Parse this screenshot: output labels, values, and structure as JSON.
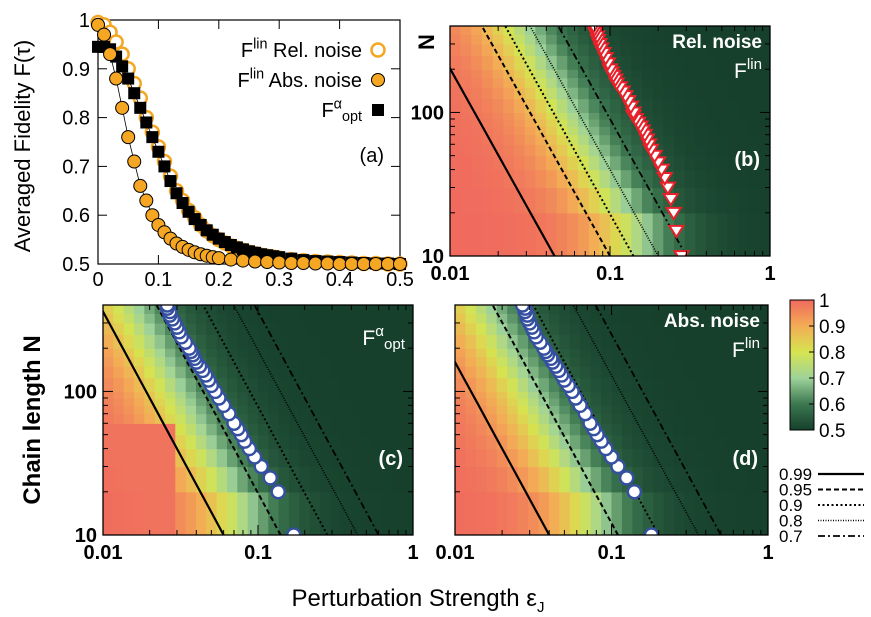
{
  "figure": {
    "ylabel_left": "Averaged Fidelity F(τ)",
    "ylabel_bottom_left": "Chain length N",
    "ylabel_b": "N",
    "xlabel": "Perturbation Strength ε",
    "xlabel_sub": "J"
  },
  "colors": {
    "orange": "#f5a623",
    "black": "#000000",
    "marker_blue": "#3550a0",
    "marker_red": "#e8202a",
    "heat_low": "#16402c",
    "heat_mid": "#d6e450",
    "heat_high": "#f06a5e"
  },
  "chart_data": [
    {
      "panel": "a",
      "type": "scatter",
      "label": "(a)",
      "xlim": [
        0,
        0.5
      ],
      "ylim": [
        0.5,
        1.0
      ],
      "xticks": [
        "0",
        "0.1",
        "0.2",
        "0.3",
        "0.4",
        "0.5"
      ],
      "yticks": [
        "0.5",
        "0.6",
        "0.7",
        "0.8",
        "0.9",
        "1"
      ],
      "legend_lines": [
        {
          "main": "F",
          "sup": "lin",
          "text": " Rel. noise"
        },
        {
          "main": "F",
          "sup": "lin",
          "text": " Abs. noise"
        },
        {
          "main": "F",
          "sup": "α",
          "sub": "opt",
          "text": ""
        }
      ],
      "series": [
        {
          "marker": "open-circle",
          "x": [
            0.0,
            0.01,
            0.02,
            0.03,
            0.04,
            0.05,
            0.06,
            0.07,
            0.08,
            0.09,
            0.1,
            0.11,
            0.12,
            0.13,
            0.14,
            0.15,
            0.16,
            0.17,
            0.18,
            0.19,
            0.2,
            0.21,
            0.22,
            0.23,
            0.24,
            0.25,
            0.26,
            0.27,
            0.28,
            0.29,
            0.3,
            0.32,
            0.34,
            0.36,
            0.38,
            0.4,
            0.42,
            0.44,
            0.46,
            0.48,
            0.5
          ],
          "y": [
            0.995,
            0.99,
            0.975,
            0.955,
            0.93,
            0.9,
            0.87,
            0.84,
            0.8,
            0.77,
            0.74,
            0.71,
            0.68,
            0.65,
            0.63,
            0.61,
            0.595,
            0.58,
            0.568,
            0.558,
            0.55,
            0.543,
            0.537,
            0.532,
            0.528,
            0.524,
            0.521,
            0.518,
            0.516,
            0.514,
            0.512,
            0.509,
            0.507,
            0.505,
            0.504,
            0.503,
            0.502,
            0.501,
            0.501,
            0.5,
            0.5
          ]
        },
        {
          "marker": "filled-circle",
          "x": [
            0.0,
            0.01,
            0.02,
            0.03,
            0.04,
            0.05,
            0.06,
            0.07,
            0.08,
            0.09,
            0.1,
            0.11,
            0.12,
            0.13,
            0.14,
            0.15,
            0.16,
            0.17,
            0.18,
            0.19,
            0.2,
            0.22,
            0.24,
            0.26,
            0.28,
            0.3,
            0.32,
            0.34,
            0.36,
            0.38,
            0.4,
            0.42,
            0.44,
            0.46,
            0.48,
            0.5
          ],
          "y": [
            0.99,
            0.97,
            0.93,
            0.88,
            0.82,
            0.76,
            0.71,
            0.66,
            0.63,
            0.6,
            0.58,
            0.565,
            0.552,
            0.542,
            0.535,
            0.529,
            0.524,
            0.52,
            0.517,
            0.514,
            0.512,
            0.509,
            0.507,
            0.505,
            0.504,
            0.503,
            0.502,
            0.502,
            0.501,
            0.501,
            0.5,
            0.5,
            0.5,
            0.5,
            0.5,
            0.5
          ]
        },
        {
          "marker": "filled-square",
          "x": [
            0.0,
            0.01,
            0.02,
            0.03,
            0.04,
            0.05,
            0.06,
            0.07,
            0.08,
            0.09,
            0.1,
            0.11,
            0.12,
            0.13,
            0.14,
            0.15,
            0.16,
            0.17,
            0.18,
            0.19,
            0.2,
            0.21,
            0.22,
            0.23,
            0.24,
            0.25,
            0.26,
            0.27,
            0.28,
            0.29,
            0.3,
            0.32,
            0.34,
            0.36,
            0.38,
            0.4,
            0.42,
            0.44,
            0.46,
            0.48,
            0.5
          ],
          "y": [
            0.945,
            0.945,
            0.94,
            0.925,
            0.905,
            0.88,
            0.85,
            0.82,
            0.79,
            0.76,
            0.73,
            0.7,
            0.67,
            0.645,
            0.625,
            0.607,
            0.592,
            0.58,
            0.569,
            0.56,
            0.552,
            0.545,
            0.539,
            0.534,
            0.53,
            0.526,
            0.523,
            0.52,
            0.518,
            0.516,
            0.514,
            0.511,
            0.508,
            0.506,
            0.505,
            0.504,
            0.503,
            0.502,
            0.501,
            0.501,
            0.5
          ]
        }
      ]
    },
    {
      "panel": "b",
      "type": "heatmap",
      "label": "(b)",
      "title": "Rel. noise",
      "title_math": {
        "main": "F",
        "sup": "lin"
      },
      "xscale": "log",
      "yscale": "log",
      "xlim": [
        0.01,
        1
      ],
      "ylim": [
        10,
        400
      ],
      "xticks": [
        "0.01",
        "0.1",
        "1"
      ],
      "yticks": [
        "10",
        "100"
      ],
      "offset": 0.52,
      "contours": [
        {
          "level": "0.99",
          "style": "solid",
          "x_at_N10": 0.045
        },
        {
          "level": "0.95",
          "style": "dashed",
          "x_at_N10": 0.1
        },
        {
          "level": "0.9",
          "style": "dotted",
          "x_at_N10": 0.14
        },
        {
          "level": "0.8",
          "style": "fine-dotted",
          "x_at_N10": 0.2
        },
        {
          "level": "0.7",
          "style": "dash-dot",
          "x_at_N10": 0.3
        }
      ],
      "markers": {
        "shape": "triangle-down",
        "N": [
          10,
          15,
          20,
          25,
          30,
          35,
          40,
          45,
          50,
          55,
          60,
          65,
          70,
          75,
          80,
          85,
          90,
          95,
          100,
          110,
          120,
          130,
          140,
          150,
          160,
          170,
          180,
          190,
          200,
          220,
          240,
          260,
          280,
          300,
          320,
          340,
          360,
          380,
          400
        ],
        "x": [
          0.28,
          0.26,
          0.25,
          0.24,
          0.23,
          0.22,
          0.21,
          0.2,
          0.19,
          0.18,
          0.175,
          0.17,
          0.165,
          0.16,
          0.155,
          0.15,
          0.145,
          0.14,
          0.14,
          0.135,
          0.13,
          0.125,
          0.12,
          0.115,
          0.11,
          0.108,
          0.105,
          0.102,
          0.1,
          0.097,
          0.094,
          0.091,
          0.088,
          0.086,
          0.084,
          0.083,
          0.081,
          0.08,
          0.079
        ]
      }
    },
    {
      "panel": "c",
      "type": "heatmap",
      "label": "(c)",
      "title_math": {
        "main": "F",
        "sup": "α",
        "sub": "opt"
      },
      "xscale": "log",
      "yscale": "log",
      "xlim": [
        0.01,
        1
      ],
      "ylim": [
        10,
        400
      ],
      "xticks": [
        "0.01",
        "0.1",
        "1"
      ],
      "yticks": [
        "10",
        "100"
      ],
      "offset": 0.28,
      "contours": [
        {
          "level": "0.99",
          "style": "solid",
          "x_at_N10": 0.06
        },
        {
          "level": "0.95",
          "style": "dashed",
          "x_at_N10": 0.14
        },
        {
          "level": "0.9",
          "style": "dotted",
          "x_at_N10": 0.28
        },
        {
          "level": "0.8",
          "style": "fine-dotted",
          "x_at_N10": 0.44
        },
        {
          "level": "0.7",
          "style": "dash-dot",
          "x_at_N10": 0.6
        }
      ],
      "markers": {
        "shape": "open-circle",
        "N": [
          10,
          20,
          25,
          30,
          35,
          40,
          45,
          50,
          55,
          60,
          70,
          80,
          90,
          100,
          110,
          120,
          130,
          140,
          150,
          160,
          170,
          180,
          190,
          200,
          220,
          240,
          260,
          280,
          300,
          320,
          340,
          360,
          380,
          400
        ],
        "x": [
          0.17,
          0.135,
          0.12,
          0.105,
          0.095,
          0.088,
          0.082,
          0.078,
          0.074,
          0.07,
          0.065,
          0.06,
          0.056,
          0.053,
          0.05,
          0.048,
          0.046,
          0.044,
          0.042,
          0.04,
          0.039,
          0.038,
          0.037,
          0.036,
          0.034,
          0.032,
          0.031,
          0.03,
          0.029,
          0.028,
          0.027,
          0.027,
          0.026,
          0.026
        ]
      }
    },
    {
      "panel": "d",
      "type": "heatmap",
      "label": "(d)",
      "title": "Abs. noise",
      "title_math": {
        "main": "F",
        "sup": "lin"
      },
      "xscale": "log",
      "yscale": "log",
      "xlim": [
        0.01,
        1
      ],
      "ylim": [
        10,
        400
      ],
      "xticks": [
        "0.01",
        "0.1",
        "1"
      ],
      "yticks": [],
      "offset": 0.28,
      "contours": [
        {
          "level": "0.99",
          "style": "solid",
          "x_at_N10": 0.04
        },
        {
          "level": "0.95",
          "style": "dashed",
          "x_at_N10": 0.11
        },
        {
          "level": "0.9",
          "style": "dotted",
          "x_at_N10": 0.2
        },
        {
          "level": "0.8",
          "style": "fine-dotted",
          "x_at_N10": 0.36
        },
        {
          "level": "0.7",
          "style": "dash-dot",
          "x_at_N10": 0.5
        }
      ],
      "markers": {
        "shape": "open-circle",
        "N": [
          10,
          20,
          25,
          30,
          35,
          40,
          45,
          50,
          55,
          60,
          70,
          80,
          90,
          100,
          110,
          120,
          130,
          140,
          150,
          160,
          170,
          180,
          190,
          200,
          220,
          240,
          260,
          280,
          300,
          320,
          340,
          360,
          380,
          400
        ],
        "x": [
          0.18,
          0.14,
          0.125,
          0.11,
          0.1,
          0.092,
          0.086,
          0.081,
          0.077,
          0.073,
          0.068,
          0.063,
          0.059,
          0.056,
          0.053,
          0.05,
          0.048,
          0.046,
          0.044,
          0.042,
          0.041,
          0.039,
          0.038,
          0.037,
          0.035,
          0.033,
          0.032,
          0.031,
          0.03,
          0.029,
          0.029,
          0.028,
          0.028,
          0.027
        ]
      }
    }
  ],
  "colorbar": {
    "min": 0.5,
    "max": 1.0,
    "ticks": [
      "0.5",
      "0.6",
      "0.7",
      "0.8",
      "0.9",
      "1"
    ]
  },
  "contour_legend": [
    {
      "label": "0.99",
      "style": "solid"
    },
    {
      "label": "0.95",
      "style": "dashed"
    },
    {
      "label": "0.9",
      "style": "dotted"
    },
    {
      "label": "0.8",
      "style": "fine-dotted"
    },
    {
      "label": "0.7",
      "style": "dash-dot"
    }
  ]
}
